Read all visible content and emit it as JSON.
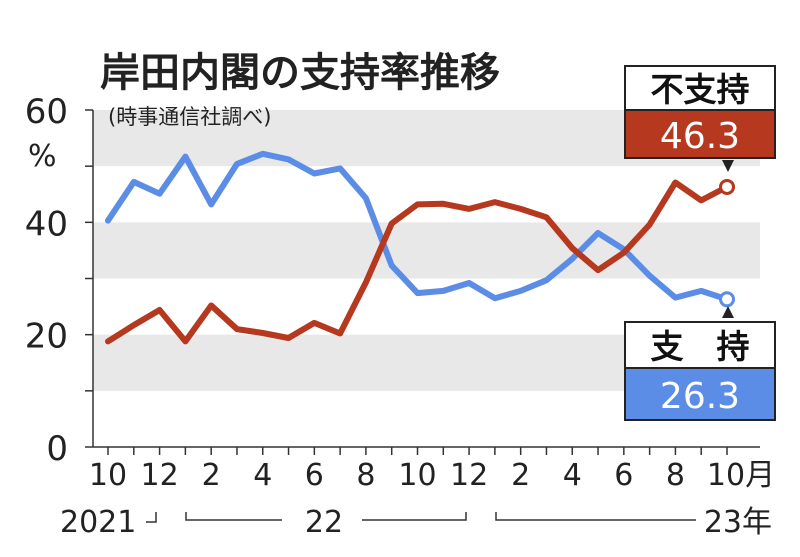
{
  "chart_data": {
    "type": "line",
    "title": "岸田内閣の支持率推移",
    "subtitle": "(時事通信社調べ)",
    "ylabel": "%",
    "ylim": [
      0,
      60
    ],
    "yticks": [
      0,
      20,
      40,
      60
    ],
    "xticks": [
      {
        "label": "10",
        "index": 0
      },
      {
        "label": "12",
        "index": 2
      },
      {
        "label": "2",
        "index": 4
      },
      {
        "label": "4",
        "index": 6
      },
      {
        "label": "6",
        "index": 8
      },
      {
        "label": "8",
        "index": 10
      },
      {
        "label": "10",
        "index": 12
      },
      {
        "label": "12",
        "index": 14
      },
      {
        "label": "2",
        "index": 16
      },
      {
        "label": "4",
        "index": 18
      },
      {
        "label": "6",
        "index": 20
      },
      {
        "label": "8",
        "index": 22
      },
      {
        "label": "10月",
        "index": 24
      }
    ],
    "year_labels": [
      {
        "label": "2021",
        "from": 0,
        "to": 2
      },
      {
        "label": "22",
        "from": 3,
        "to": 14
      },
      {
        "label": "23年",
        "from": 15,
        "to": 24
      }
    ],
    "categories": [
      "2021-10",
      "2021-11",
      "2021-12",
      "2022-01",
      "2022-02",
      "2022-03",
      "2022-04",
      "2022-05",
      "2022-06",
      "2022-07",
      "2022-08",
      "2022-09",
      "2022-10",
      "2022-11",
      "2022-12",
      "2023-01",
      "2023-02",
      "2023-03",
      "2023-04",
      "2023-05",
      "2023-06",
      "2023-07",
      "2023-08",
      "2023-09",
      "2023-10"
    ],
    "series": [
      {
        "name": "支持",
        "color": "#5b8de6",
        "values": [
          40.3,
          47.2,
          45.1,
          51.7,
          43.2,
          50.4,
          52.2,
          51.2,
          48.7,
          49.6,
          44.3,
          32.3,
          27.4,
          27.8,
          29.2,
          26.5,
          27.8,
          29.7,
          33.5,
          38.1,
          35.2,
          30.5,
          26.6,
          27.8,
          26.3
        ]
      },
      {
        "name": "不支持",
        "color": "#b5381f",
        "values": [
          18.8,
          21.7,
          24.4,
          18.8,
          25.2,
          21.0,
          20.3,
          19.4,
          22.1,
          20.2,
          29.3,
          39.8,
          43.2,
          43.3,
          42.4,
          43.6,
          42.4,
          40.9,
          35.4,
          31.5,
          34.6,
          39.6,
          47.1,
          43.9,
          46.3
        ]
      }
    ],
    "callouts": [
      {
        "series": "不支持",
        "label": "不支持",
        "value": "46.3",
        "color": "#b5381f"
      },
      {
        "series": "支持",
        "label": "支　持",
        "value": "26.3",
        "color": "#5b8de6"
      }
    ],
    "grid": "alternating-bands"
  }
}
